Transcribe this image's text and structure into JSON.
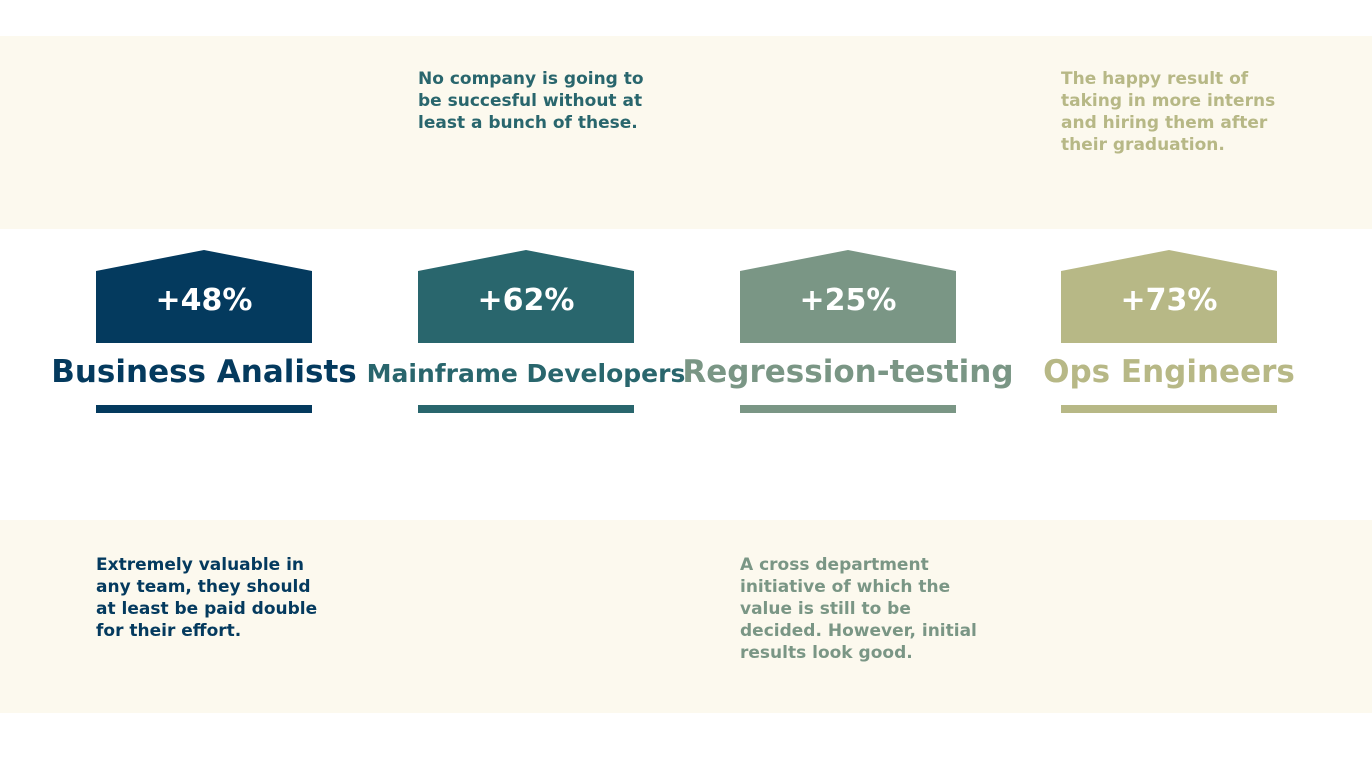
{
  "notes": {
    "mainframe": "No company is going to be succesful without at least a bunch of these.",
    "ops": "The happy result of taking in more interns and hiring them after their graduation.",
    "business": "Extremely valuable in any team, they should at least be paid double for their effort.",
    "regression": "A cross department initiative of which the value is still to be decided. However, initial results look good."
  },
  "categories": [
    {
      "label": "Business Analists",
      "percent": "+48%",
      "value": 48,
      "color": "#043a5e"
    },
    {
      "label": "Mainframe Developers",
      "percent": "+62%",
      "value": 62,
      "color": "#29666d"
    },
    {
      "label": "Regression-testing",
      "percent": "+25%",
      "value": 25,
      "color": "#7a9685"
    },
    {
      "label": "Ops Engineers",
      "percent": "+73%",
      "value": 73,
      "color": "#b7b886"
    }
  ],
  "colors": {
    "band_background": "#fcf9ee",
    "page_background": "#ffffff"
  }
}
